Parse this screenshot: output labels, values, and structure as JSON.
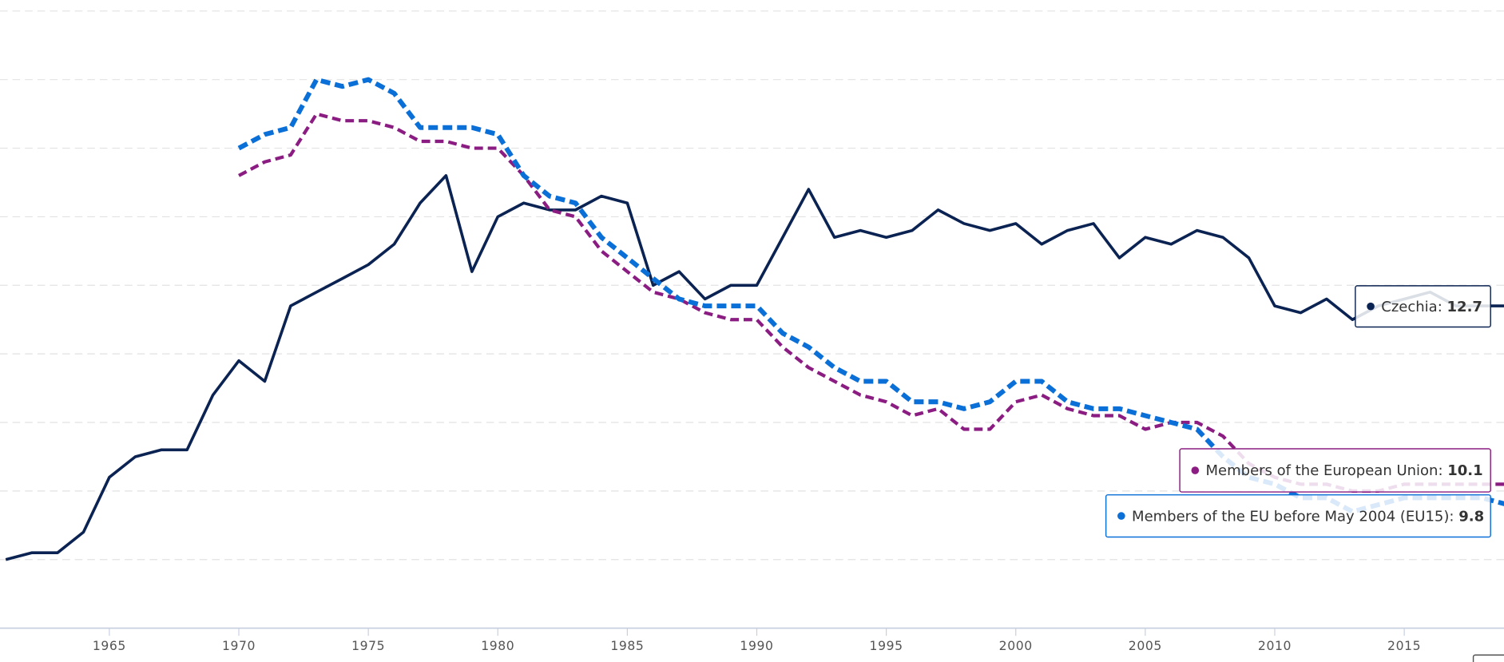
{
  "chart_data": {
    "type": "line",
    "x": [
      1961,
      1962,
      1963,
      1964,
      1965,
      1966,
      1967,
      1968,
      1969,
      1970,
      1971,
      1972,
      1973,
      1974,
      1975,
      1976,
      1977,
      1978,
      1979,
      1980,
      1981,
      1982,
      1983,
      1984,
      1985,
      1986,
      1987,
      1988,
      1989,
      1990,
      1991,
      1992,
      1993,
      1994,
      1995,
      1996,
      1997,
      1998,
      1999,
      2000,
      2001,
      2002,
      2003,
      2004,
      2005,
      2006,
      2007,
      2008,
      2009,
      2010,
      2011,
      2012,
      2013,
      2014,
      2015,
      2016,
      2017,
      2018,
      2019
    ],
    "series": [
      {
        "name": "Czechia",
        "color": "#0b2352",
        "dash": false,
        "values": [
          9.0,
          9.1,
          9.1,
          9.4,
          10.2,
          10.5,
          10.6,
          10.6,
          11.4,
          11.9,
          11.6,
          12.7,
          12.9,
          13.1,
          13.3,
          13.6,
          14.2,
          14.6,
          13.2,
          14.0,
          14.2,
          14.1,
          14.1,
          14.3,
          14.2,
          13.0,
          13.2,
          12.8,
          13.0,
          13.0,
          13.7,
          14.4,
          13.7,
          13.8,
          13.7,
          13.8,
          14.1,
          13.9,
          13.8,
          13.9,
          13.6,
          13.8,
          13.9,
          13.4,
          13.7,
          13.6,
          13.8,
          13.7,
          13.4,
          12.7,
          12.6,
          12.8,
          12.5,
          12.7,
          12.8,
          12.9,
          12.7,
          12.7,
          12.7
        ]
      },
      {
        "name": "Members of the European Union",
        "color": "#8b1d82",
        "dash": true,
        "values": [
          null,
          null,
          null,
          null,
          null,
          null,
          null,
          null,
          null,
          14.6,
          14.8,
          14.9,
          15.5,
          15.4,
          15.4,
          15.3,
          15.1,
          15.1,
          15.0,
          15.0,
          14.6,
          14.1,
          14.0,
          13.5,
          13.2,
          12.9,
          12.8,
          12.6,
          12.5,
          12.5,
          12.1,
          11.8,
          11.6,
          11.4,
          11.3,
          11.1,
          11.2,
          10.9,
          10.9,
          11.3,
          11.4,
          11.2,
          11.1,
          11.1,
          10.9,
          11.0,
          11.0,
          10.8,
          10.4,
          10.2,
          10.1,
          10.1,
          10.0,
          10.0,
          10.1,
          10.1,
          10.1,
          10.1,
          10.1
        ]
      },
      {
        "name": "Members of the EU before May 2004 (EU15)",
        "color": "#0b6fd8",
        "dash": true,
        "values": [
          null,
          null,
          null,
          null,
          null,
          null,
          null,
          null,
          null,
          15.0,
          15.2,
          15.3,
          16.0,
          15.9,
          16.0,
          15.8,
          15.3,
          15.3,
          15.3,
          15.2,
          14.6,
          14.3,
          14.2,
          13.7,
          13.4,
          13.1,
          12.8,
          12.7,
          12.7,
          12.7,
          12.3,
          12.1,
          11.8,
          11.6,
          11.6,
          11.3,
          11.3,
          11.2,
          11.3,
          11.6,
          11.6,
          11.3,
          11.2,
          11.2,
          11.1,
          11.0,
          10.9,
          10.5,
          10.2,
          10.1,
          9.9,
          9.9,
          9.7,
          9.8,
          9.9,
          9.9,
          9.9,
          9.9,
          9.8
        ]
      }
    ],
    "xlim": [
      1961,
      2019
    ],
    "xticks": [
      1965,
      1970,
      1975,
      1980,
      1985,
      1990,
      1995,
      2000,
      2005,
      2010,
      2015
    ],
    "ylim": [
      8,
      17
    ],
    "yticks": [
      8,
      9,
      10,
      11,
      12,
      13,
      14,
      15,
      16,
      17
    ],
    "grid": true
  }
}
